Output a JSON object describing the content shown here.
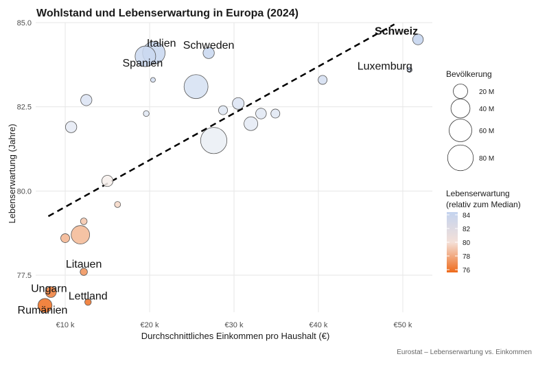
{
  "chart_data": {
    "type": "scatter",
    "title": "Wohlstand und Lebenserwartung in Europa (2024)",
    "xlabel": "Durchschnittliches Einkommen pro Haushalt (€)",
    "ylabel": "Lebenserwartung (Jahre)",
    "caption": "Eurostat – Lebenserwartung vs. Einkommen",
    "xlim": [
      6500,
      53500
    ],
    "ylim": [
      76.4,
      85.0
    ],
    "x_ticks": [
      10000,
      20000,
      30000,
      40000,
      50000
    ],
    "x_tick_labels": [
      "€10 k",
      "€20 k",
      "€30 k",
      "€40 k",
      "€50 k"
    ],
    "y_ticks": [
      77.5,
      80.0,
      82.5,
      85.0
    ],
    "y_tick_labels": [
      "77.5",
      "80.0",
      "82.5",
      "85.0"
    ],
    "grid": true,
    "trend_line": {
      "style": "dashed",
      "x": [
        8000,
        49000
      ],
      "y": [
        79.25,
        84.95
      ]
    },
    "color_median": 80.5,
    "points": [
      {
        "label": "Schweiz",
        "x": 51800,
        "y": 84.5,
        "pop": 9
      },
      {
        "label": "Luxemburg",
        "x": 50800,
        "y": 83.6,
        "pop": 0.7
      },
      {
        "label": "Italien",
        "x": 20500,
        "y": 84.1,
        "pop": 59
      },
      {
        "label": "Spanien",
        "x": 19500,
        "y": 84.0,
        "pop": 48
      },
      {
        "label": "Schweden",
        "x": 27000,
        "y": 84.1,
        "pop": 10.5
      },
      {
        "label": "",
        "x": 25500,
        "y": 83.1,
        "pop": 68
      },
      {
        "label": "",
        "x": 20400,
        "y": 83.3,
        "pop": 0.5
      },
      {
        "label": "",
        "x": 40500,
        "y": 83.3,
        "pop": 5.5
      },
      {
        "label": "",
        "x": 12500,
        "y": 82.7,
        "pop": 10.4
      },
      {
        "label": "",
        "x": 19600,
        "y": 82.3,
        "pop": 1.2
      },
      {
        "label": "",
        "x": 28700,
        "y": 82.4,
        "pop": 5.6
      },
      {
        "label": "",
        "x": 30500,
        "y": 82.6,
        "pop": 11.7
      },
      {
        "label": "",
        "x": 33200,
        "y": 82.3,
        "pop": 9.1
      },
      {
        "label": "",
        "x": 34900,
        "y": 82.3,
        "pop": 5.5
      },
      {
        "label": "",
        "x": 10700,
        "y": 81.9,
        "pop": 10.6
      },
      {
        "label": "",
        "x": 32000,
        "y": 82.0,
        "pop": 17.9
      },
      {
        "label": "",
        "x": 27600,
        "y": 81.5,
        "pop": 84
      },
      {
        "label": "",
        "x": 15000,
        "y": 80.3,
        "pop": 10.3
      },
      {
        "label": "",
        "x": 16200,
        "y": 79.6,
        "pop": 1.4
      },
      {
        "label": "",
        "x": 12200,
        "y": 79.1,
        "pop": 2.1
      },
      {
        "label": "",
        "x": 10000,
        "y": 78.6,
        "pop": 5.4
      },
      {
        "label": "",
        "x": 11800,
        "y": 78.7,
        "pop": 37
      },
      {
        "label": "Litauen",
        "x": 12200,
        "y": 77.6,
        "pop": 2.8
      },
      {
        "label": "Ungarn",
        "x": 8300,
        "y": 77.0,
        "pop": 9.6
      },
      {
        "label": "Lettland",
        "x": 12700,
        "y": 76.7,
        "pop": 1.9
      },
      {
        "label": "Rumänien",
        "x": 7600,
        "y": 76.6,
        "pop": 19
      }
    ],
    "size_legend": {
      "title": "Bevölkerung",
      "values": [
        20,
        40,
        60,
        80
      ],
      "labels": [
        "20 M",
        "40 M",
        "60 M",
        "80 M"
      ]
    },
    "color_legend": {
      "title_line1": "Lebenserwartung",
      "title_line2": "(relativ zum Median)",
      "values": [
        84,
        82,
        80,
        78,
        76
      ],
      "labels": [
        "84",
        "82",
        "80",
        "78",
        "76"
      ]
    },
    "colors": {
      "high": "#c3d3ef",
      "mid": "#f7f7f7",
      "low": "#ee6a1b",
      "outline": "#555555",
      "trend": "#000000"
    }
  }
}
